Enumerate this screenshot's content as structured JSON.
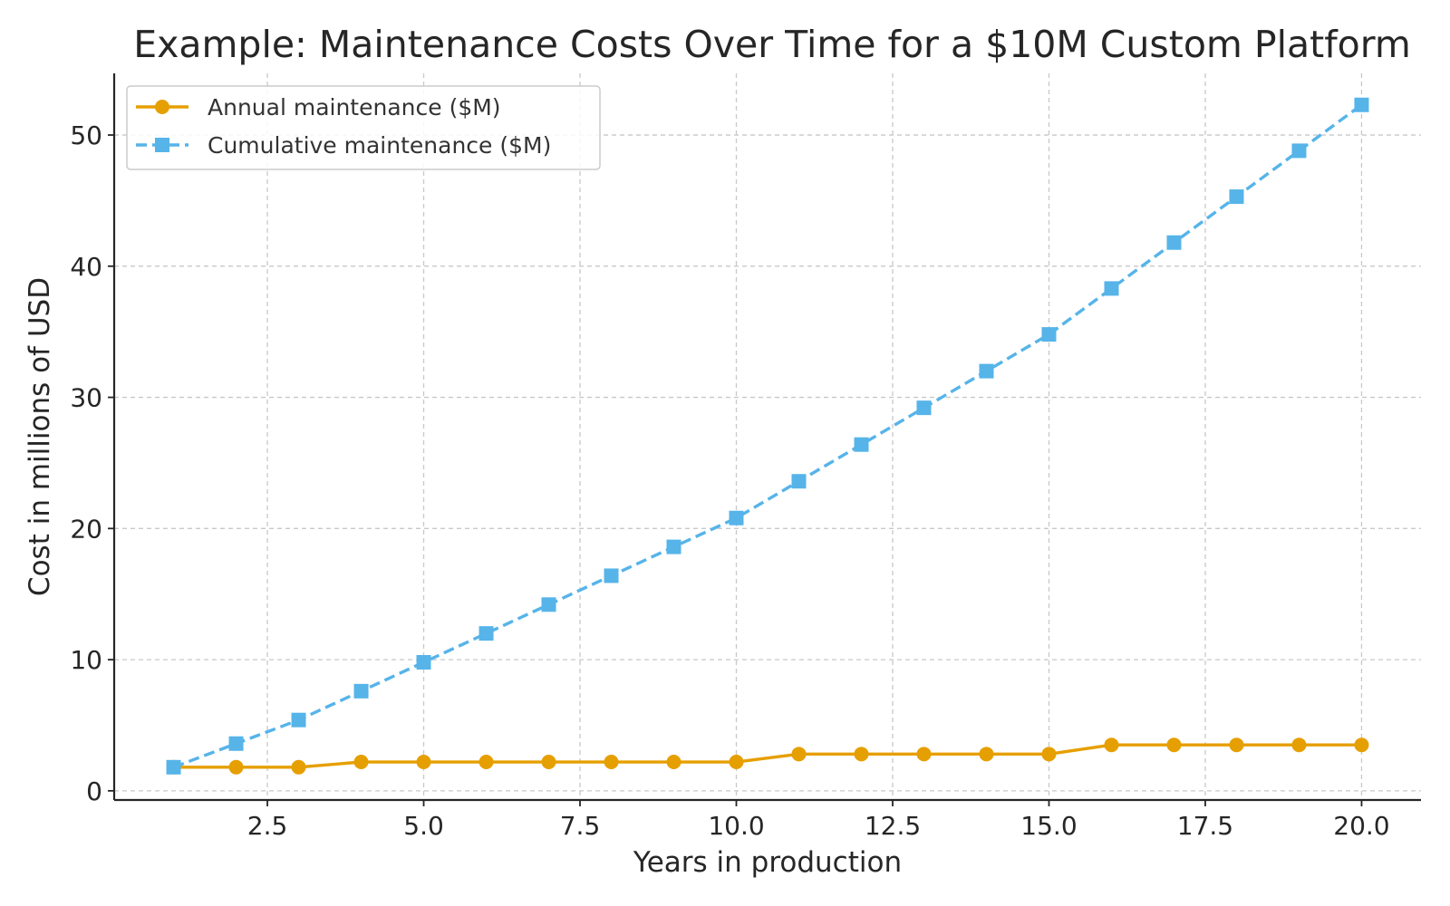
{
  "chart_data": {
    "type": "line",
    "title": "Example: Maintenance Costs Over Time for a $10M Custom Platform",
    "xlabel": "Years in production",
    "ylabel": "Cost in millions of USD",
    "xlim": [
      0.05,
      20.95
    ],
    "ylim": [
      -0.7,
      54.7
    ],
    "x_ticks": [
      2.5,
      5.0,
      7.5,
      10.0,
      12.5,
      15.0,
      17.5,
      20.0
    ],
    "x_tick_labels": [
      "2.5",
      "5.0",
      "7.5",
      "10.0",
      "12.5",
      "15.0",
      "17.5",
      "20.0"
    ],
    "y_ticks": [
      0,
      10,
      20,
      30,
      40,
      50
    ],
    "y_tick_labels": [
      "0",
      "10",
      "20",
      "30",
      "40",
      "50"
    ],
    "grid": true,
    "legend_position": "top-left",
    "x": [
      1,
      2,
      3,
      4,
      5,
      6,
      7,
      8,
      9,
      10,
      11,
      12,
      13,
      14,
      15,
      16,
      17,
      18,
      19,
      20
    ],
    "series": [
      {
        "name": "Annual maintenance ($M)",
        "color": "#e69f00",
        "line_style": "solid",
        "marker": "circle",
        "values": [
          1.8,
          1.8,
          1.8,
          2.2,
          2.2,
          2.2,
          2.2,
          2.2,
          2.2,
          2.2,
          2.8,
          2.8,
          2.8,
          2.8,
          2.8,
          3.5,
          3.5,
          3.5,
          3.5,
          3.5
        ]
      },
      {
        "name": "Cumulative maintenance ($M)",
        "color": "#56b4e9",
        "line_style": "dashed",
        "marker": "square",
        "values": [
          1.8,
          3.6,
          5.4,
          7.6,
          9.8,
          12.0,
          14.2,
          16.4,
          18.6,
          20.8,
          23.6,
          26.4,
          29.2,
          32.0,
          34.8,
          38.3,
          41.8,
          45.3,
          48.8,
          52.3
        ]
      }
    ]
  }
}
